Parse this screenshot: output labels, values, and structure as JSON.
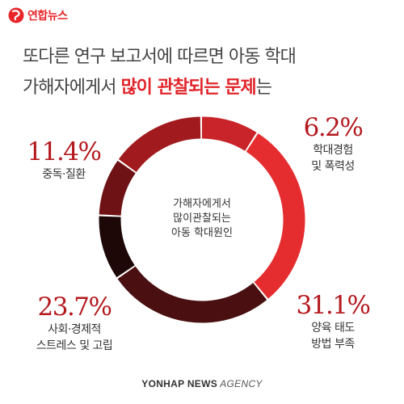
{
  "brand": {
    "name": "연합뉴스"
  },
  "headline": {
    "line1": "또다른 연구 보고서에 따르면 아동 학대",
    "line2_prefix": "가해자에게서 ",
    "line2_highlight": "많이 관찰되는 문제",
    "line2_suffix": "는"
  },
  "center_label": {
    "lines": [
      "가해자에게서",
      "많이관찰되는",
      "아동 학대원인"
    ]
  },
  "chart_data": {
    "type": "pie",
    "variant": "donut",
    "slices": [
      {
        "pct_label": "6.2%",
        "lines": [
          "학대경험",
          "및 폭력성"
        ],
        "color": "#d42328"
      },
      {
        "pct_label": "31.1%",
        "lines": [
          "양육 태도",
          "방법 부족"
        ],
        "color": "#e52d30"
      },
      {
        "pct_label": "23.7%",
        "lines": [
          "사회·경제적",
          "스트레스 및 고립"
        ],
        "color": "#2a0c0c"
      },
      {
        "pct_label": "11.4%",
        "lines": [
          "중독·질환"
        ],
        "color": "#6e1215"
      }
    ],
    "arcs": [
      {
        "start_deg": 0,
        "end_deg": 32,
        "color": "#c8242a"
      },
      {
        "start_deg": 33,
        "end_deg": 140,
        "color": "#e52d30"
      },
      {
        "start_deg": 141,
        "end_deg": 235,
        "color": "#4a0f10"
      },
      {
        "start_deg": 236,
        "end_deg": 272,
        "color": "#1e0707"
      },
      {
        "start_deg": 273,
        "end_deg": 305,
        "color": "#6e1215"
      },
      {
        "start_deg": 306,
        "end_deg": 359,
        "color": "#a11a1e"
      }
    ]
  },
  "footer": {
    "bold": "YONHAP NEWS",
    "rest": " AGENCY"
  },
  "colors": {
    "accent": "#e0252b",
    "percent": "#b3181d"
  }
}
